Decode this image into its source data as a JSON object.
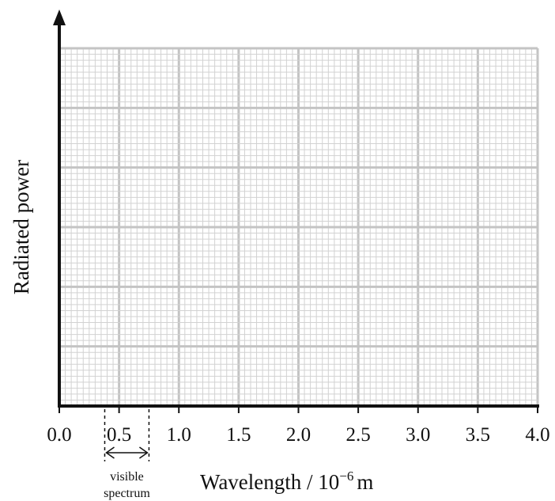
{
  "chart_data": {
    "type": "line",
    "title": "",
    "xlabel": "Wavelength / 10",
    "xlabel_exponent": "−6",
    "xlabel_unit": "m",
    "ylabel": "Radiated power",
    "xlim": [
      0,
      4.0
    ],
    "ylim": [
      0,
      6
    ],
    "x_ticks": [
      "0.0",
      "0.5",
      "1.0",
      "1.5",
      "2.0",
      "2.5",
      "3.0",
      "3.5",
      "4.0"
    ],
    "grid": true,
    "series": [],
    "annotation": {
      "line1": "visible",
      "line2": "spectrum",
      "x_range": [
        0.38,
        0.75
      ]
    }
  },
  "colors": {
    "grid_major": "#c4c4c4",
    "grid_minor": "#d2d2d2",
    "axis": "#111111"
  }
}
